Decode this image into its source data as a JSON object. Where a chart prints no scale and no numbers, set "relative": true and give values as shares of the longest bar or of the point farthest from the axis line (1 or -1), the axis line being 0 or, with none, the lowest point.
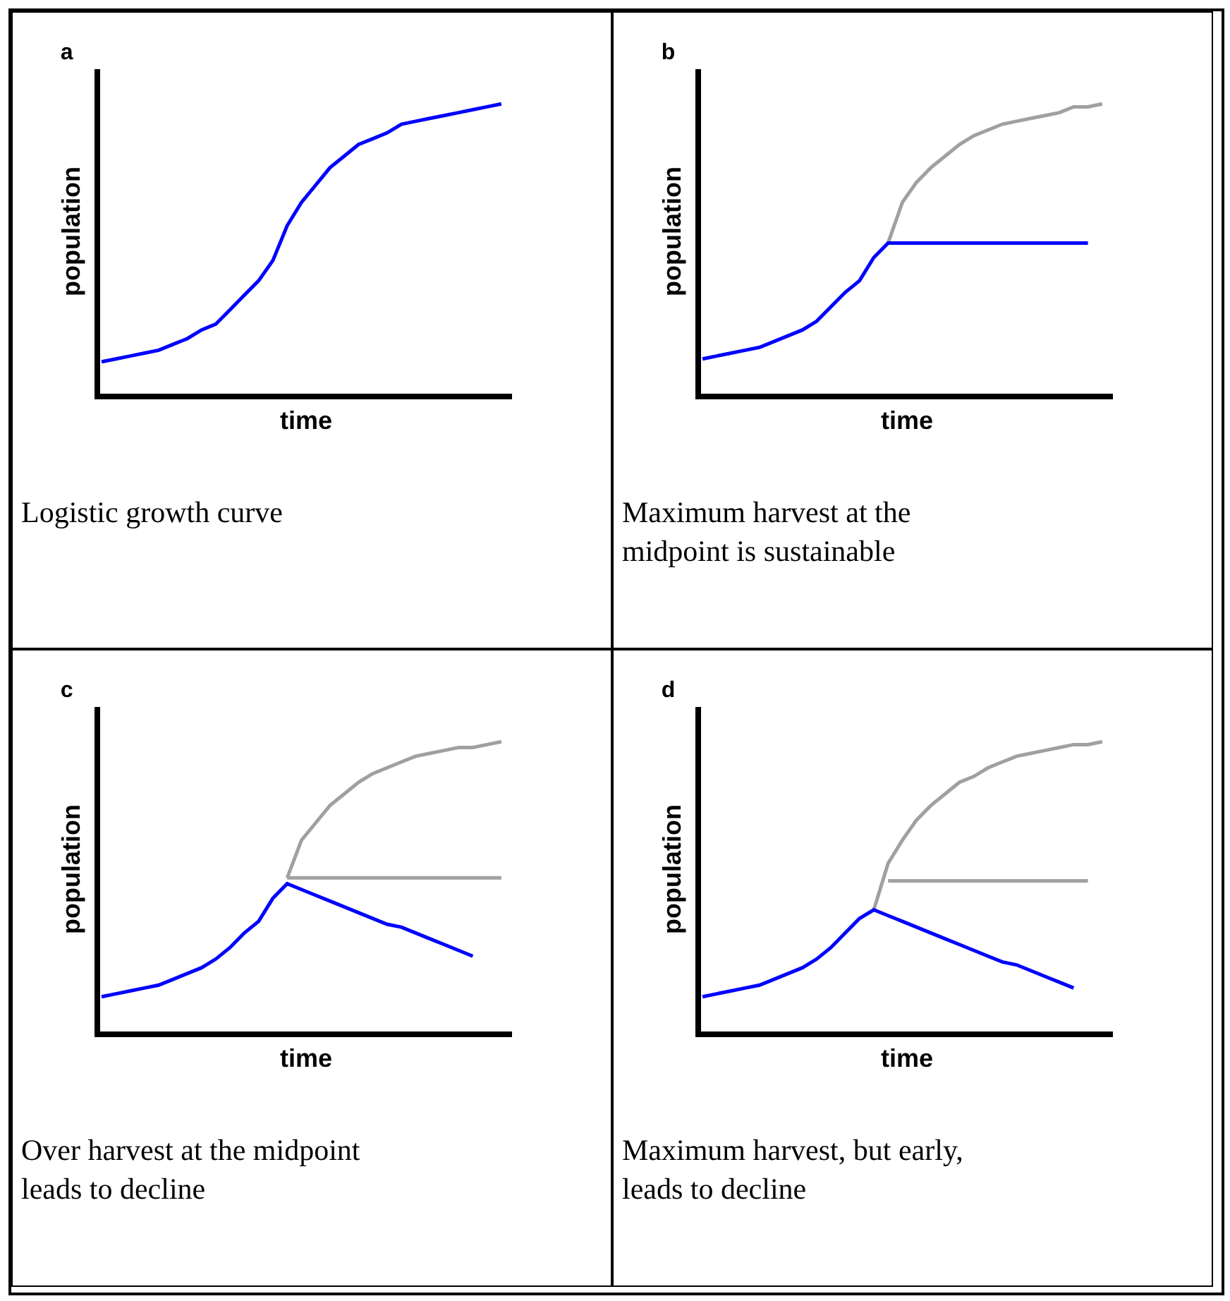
{
  "chart_data": [
    {
      "type": "line",
      "title": "a",
      "xlabel": "time",
      "ylabel": "population",
      "relative": true,
      "annotations": [
        "Logistic growth curve"
      ],
      "categories": [
        null,
        null,
        null,
        null,
        null,
        null,
        null,
        null,
        null,
        null,
        null,
        null,
        null,
        null,
        null,
        null,
        null,
        null,
        null,
        null,
        null,
        null,
        null,
        null,
        null,
        null,
        null,
        null,
        null
      ],
      "series": [
        {
          "color": "#0000ff",
          "values": [
            0.11,
            0.12,
            0.13,
            0.14,
            0.15,
            0.17,
            0.19,
            0.22,
            0.24,
            0.29,
            0.34,
            0.39,
            0.46,
            0.58,
            0.66,
            0.72,
            0.78,
            0.82,
            0.86,
            0.88,
            0.9,
            0.93,
            0.94,
            0.95,
            0.96,
            0.97,
            0.98,
            0.99,
            1
          ]
        }
      ]
    },
    {
      "type": "line",
      "title": "b",
      "xlabel": "time",
      "ylabel": "population",
      "relative": true,
      "annotations": [
        "Maximum harvest at the midpoint is sustainable"
      ],
      "categories": [
        null,
        null,
        null,
        null,
        null,
        null,
        null,
        null,
        null,
        null,
        null,
        null,
        null,
        null,
        null,
        null,
        null,
        null,
        null,
        null,
        null,
        null,
        null,
        null,
        null,
        null,
        null,
        null,
        null
      ],
      "series": [
        {
          "color": "#a0a0a0",
          "values": [
            null,
            null,
            null,
            null,
            null,
            null,
            null,
            null,
            null,
            null,
            null,
            null,
            null,
            0.52,
            0.66,
            0.73,
            0.78,
            0.82,
            0.86,
            0.89,
            0.91,
            0.93,
            0.94,
            0.95,
            0.96,
            0.97,
            0.99,
            0.99,
            1
          ]
        },
        {
          "color": "#0000ff",
          "values": [
            0.12,
            0.13,
            0.14,
            0.15,
            0.16,
            0.18,
            0.2,
            0.22,
            0.25,
            0.3,
            0.35,
            0.39,
            0.47,
            0.52,
            0.52,
            0.52,
            0.52,
            0.52,
            0.52,
            0.52,
            0.52,
            0.52,
            0.52,
            0.52,
            0.52,
            0.52,
            0.52,
            0.52,
            null
          ]
        }
      ]
    },
    {
      "type": "line",
      "title": "c",
      "xlabel": "time",
      "ylabel": "population",
      "relative": true,
      "annotations": [
        "Over harvest at the midpoint leads to decline"
      ],
      "categories": [
        null,
        null,
        null,
        null,
        null,
        null,
        null,
        null,
        null,
        null,
        null,
        null,
        null,
        null,
        null,
        null,
        null,
        null,
        null,
        null,
        null,
        null,
        null,
        null,
        null,
        null,
        null,
        null,
        null
      ],
      "series": [
        {
          "color": "#a0a0a0",
          "values": [
            null,
            null,
            null,
            null,
            null,
            null,
            null,
            null,
            null,
            null,
            null,
            null,
            null,
            0.53,
            0.66,
            0.72,
            0.78,
            0.82,
            0.86,
            0.89,
            0.91,
            0.93,
            0.95,
            0.96,
            0.97,
            0.98,
            0.98,
            0.99,
            1
          ]
        },
        {
          "color": "#a0a0a0",
          "values": [
            null,
            null,
            null,
            null,
            null,
            null,
            null,
            null,
            null,
            null,
            null,
            null,
            null,
            0.53,
            0.53,
            0.53,
            0.53,
            0.53,
            0.53,
            0.53,
            0.53,
            0.53,
            0.53,
            0.53,
            0.53,
            0.53,
            0.53,
            0.53,
            0.53
          ]
        },
        {
          "color": "#0000ff",
          "values": [
            0.12,
            0.13,
            0.14,
            0.15,
            0.16,
            0.18,
            0.2,
            0.22,
            0.25,
            0.29,
            0.34,
            0.38,
            0.46,
            0.51,
            0.49,
            0.47,
            0.45,
            0.43,
            0.41,
            0.39,
            0.37,
            0.36,
            0.34,
            0.32,
            0.3,
            0.28,
            0.26,
            null,
            null
          ]
        }
      ]
    },
    {
      "type": "line",
      "title": "d",
      "xlabel": "time",
      "ylabel": "population",
      "relative": true,
      "annotations": [
        "Maximum harvest, but early, leads to decline"
      ],
      "categories": [
        null,
        null,
        null,
        null,
        null,
        null,
        null,
        null,
        null,
        null,
        null,
        null,
        null,
        null,
        null,
        null,
        null,
        null,
        null,
        null,
        null,
        null,
        null,
        null,
        null,
        null,
        null,
        null,
        null
      ],
      "series": [
        {
          "color": "#a0a0a0",
          "values": [
            null,
            null,
            null,
            null,
            null,
            null,
            null,
            null,
            null,
            null,
            null,
            null,
            0.42,
            0.58,
            0.66,
            0.73,
            0.78,
            0.82,
            0.86,
            0.88,
            0.91,
            0.93,
            0.95,
            0.96,
            0.97,
            0.98,
            0.99,
            0.99,
            1
          ]
        },
        {
          "color": "#a0a0a0",
          "values": [
            null,
            null,
            null,
            null,
            null,
            null,
            null,
            null,
            null,
            null,
            null,
            null,
            null,
            0.52,
            0.52,
            0.52,
            0.52,
            0.52,
            0.52,
            0.52,
            0.52,
            0.52,
            0.52,
            0.52,
            0.52,
            0.52,
            0.52,
            0.52,
            null
          ]
        },
        {
          "color": "#0000ff",
          "values": [
            0.12,
            0.13,
            0.14,
            0.15,
            0.16,
            0.18,
            0.2,
            0.22,
            0.25,
            0.29,
            0.34,
            0.39,
            0.42,
            0.4,
            0.38,
            0.36,
            0.34,
            0.32,
            0.3,
            0.28,
            0.26,
            0.24,
            0.23,
            0.21,
            0.19,
            0.17,
            0.15,
            null,
            null
          ]
        }
      ]
    }
  ]
}
